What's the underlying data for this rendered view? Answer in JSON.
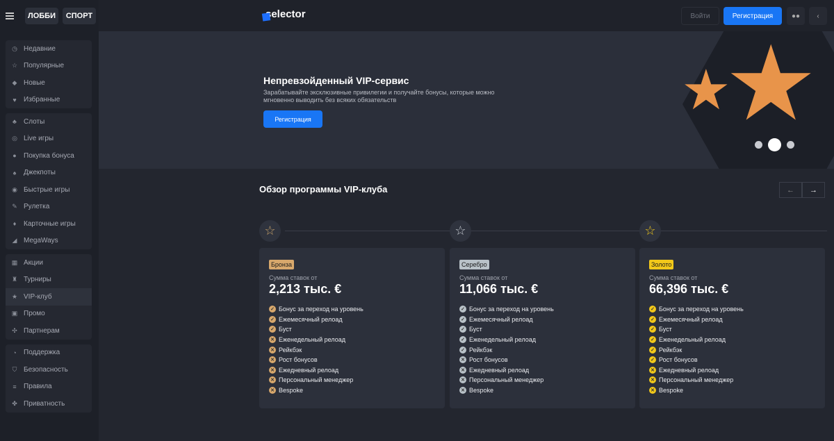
{
  "topnav": {
    "lobby": "ЛОББИ",
    "sport": "СПОРТ"
  },
  "sidebar": {
    "groups": [
      [
        {
          "icon": "clock",
          "glyph": "◷",
          "label": "Недавние"
        },
        {
          "icon": "star",
          "glyph": "☆",
          "label": "Популярные"
        },
        {
          "icon": "diamond",
          "glyph": "◆",
          "label": "Новые"
        },
        {
          "icon": "heart",
          "glyph": "♥",
          "label": "Избранные"
        }
      ],
      [
        {
          "icon": "slots",
          "glyph": "♣",
          "label": "Слоты"
        },
        {
          "icon": "headset",
          "glyph": "◎",
          "label": "Live игры"
        },
        {
          "icon": "bonus",
          "glyph": "●",
          "label": "Покупка бонуса"
        },
        {
          "icon": "flame",
          "glyph": "♠",
          "label": "Джекпоты"
        },
        {
          "icon": "fire",
          "glyph": "◉",
          "label": "Быстрые игры"
        },
        {
          "icon": "roulette",
          "glyph": "✎",
          "label": "Рулетка"
        },
        {
          "icon": "cards",
          "glyph": "♦",
          "label": "Карточные игры"
        },
        {
          "icon": "megaways",
          "glyph": "◢",
          "label": "MegaWays"
        }
      ],
      [
        {
          "icon": "gift",
          "glyph": "▦",
          "label": "Акции"
        },
        {
          "icon": "trophy",
          "glyph": "♜",
          "label": "Турниры"
        },
        {
          "icon": "vip-star",
          "glyph": "★",
          "label": "VIP-клуб",
          "active": true
        },
        {
          "icon": "promo",
          "glyph": "▣",
          "label": "Промо"
        },
        {
          "icon": "partners",
          "glyph": "✣",
          "label": "Партнерам"
        }
      ],
      [
        {
          "icon": "support",
          "glyph": "◔",
          "label": "Поддержка"
        },
        {
          "icon": "shield",
          "glyph": "⛉",
          "label": "Безопасность"
        },
        {
          "icon": "rules",
          "glyph": "≡",
          "label": "Правила"
        },
        {
          "icon": "privacy",
          "glyph": "✤",
          "label": "Приватность"
        }
      ]
    ]
  },
  "header": {
    "logo": "selector",
    "login": "Войти",
    "register": "Регистрация"
  },
  "banner": {
    "title": "Непревзойденный VIP-сервис",
    "description": "Зарабатывайте эксклюзивные привилегии и получайте бонусы, которые можно мгновенно выводить без всяких обязательств",
    "button": "Регистрация",
    "slides": 3,
    "active_slide": 2
  },
  "section": {
    "title": "Обзор программы VIP-клуба",
    "prev": "←",
    "next": "→"
  },
  "features": [
    "Бонус за переход на уровень",
    "Ежемесячный релоад",
    "Буст",
    "Еженедельный релоад",
    "Рейкбэк",
    "Рост бонусов",
    "Ежедневный релоад",
    "Персональный менеджер",
    "Bespoke"
  ],
  "tiers": [
    {
      "name": "Бронза",
      "label": "Сумма ставок от",
      "amount": "2,213 тыс. €",
      "color": "#d8a86c",
      "star": "#c9a36a",
      "included": 3
    },
    {
      "name": "Серебро",
      "label": "Сумма ставок от",
      "amount": "11,066 тыс. €",
      "color": "#b9c2c8",
      "star": "#c8cdd3",
      "included": 5
    },
    {
      "name": "Золото",
      "label": "Сумма ставок от",
      "amount": "66,396 тыс. €",
      "color": "#f2c81a",
      "star": "#f2c81a",
      "included": 6
    }
  ]
}
